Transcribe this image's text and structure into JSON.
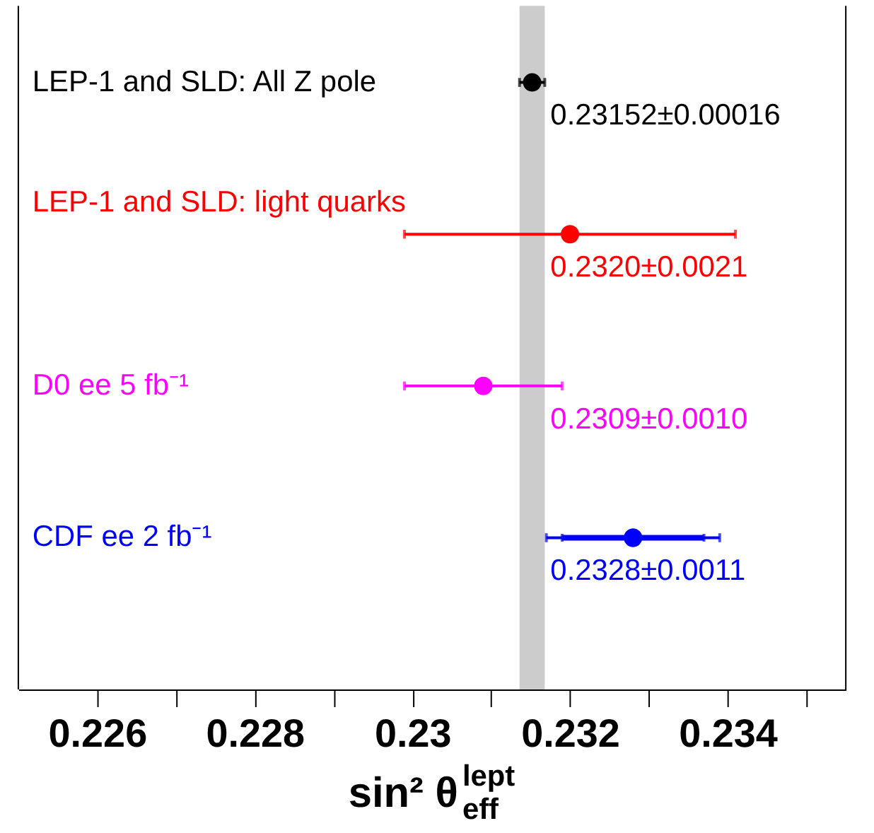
{
  "chart_data": {
    "type": "scatter",
    "orientation": "horizontal",
    "xlabel": "sin² θ$^{lept}$$_{eff}$",
    "categories": [
      "LEP-1 and SLD: All Z pole",
      "LEP-1 and SLD: light quarks",
      "D0 ee 5 fb⁻¹",
      "CDF ee 2 fb⁻¹"
    ],
    "xlim": [
      0.225,
      0.2355
    ],
    "xticks": [
      0.226,
      {
        "value": 0.227,
        "label": null
      },
      0.228,
      {
        "value": 0.229,
        "label": null
      },
      0.23,
      {
        "value": 0.231,
        "label": null
      },
      0.232,
      {
        "value": 0.233,
        "label": null
      },
      0.234,
      {
        "value": 0.235,
        "label": null
      }
    ],
    "grid": false,
    "tick_labels": "x",
    "marker": "circle",
    "series": [
      {
        "color": "#000000",
        "values": [
          0.23152,
          null,
          null,
          null
        ],
        "errors": [
          0.00016,
          null,
          null,
          null
        ],
        "value_labels": [
          "0.23152±0.00016",
          null,
          null,
          null
        ]
      },
      {
        "color": "#ff0000",
        "values": [
          null,
          0.232,
          null,
          null
        ],
        "errors": [
          null,
          0.0021,
          null,
          null
        ],
        "value_labels": [
          null,
          "0.2320±0.0021",
          null,
          null
        ]
      },
      {
        "color": "#ff00ff",
        "values": [
          null,
          null,
          0.2309,
          null
        ],
        "errors": [
          null,
          null,
          0.001,
          null
        ],
        "value_labels": [
          null,
          null,
          "0.2309±0.0010",
          null
        ]
      },
      {
        "color": "#0000ff",
        "values": [
          null,
          null,
          null,
          0.2328
        ],
        "errors": [
          null,
          null,
          null,
          0.0011
        ],
        "value_labels": [
          null,
          null,
          null,
          "0.2328±0.0011"
        ]
      },
      {
        "color": "#0000ff",
        "values": [
          null,
          null,
          null,
          0.2328
        ],
        "errors": [
          null,
          null,
          null,
          0.0009
        ]
      }
    ],
    "bands": [
      {
        "axis": "x",
        "from": 0.23136,
        "to": 0.23168,
        "color": "#cccccc"
      }
    ]
  }
}
